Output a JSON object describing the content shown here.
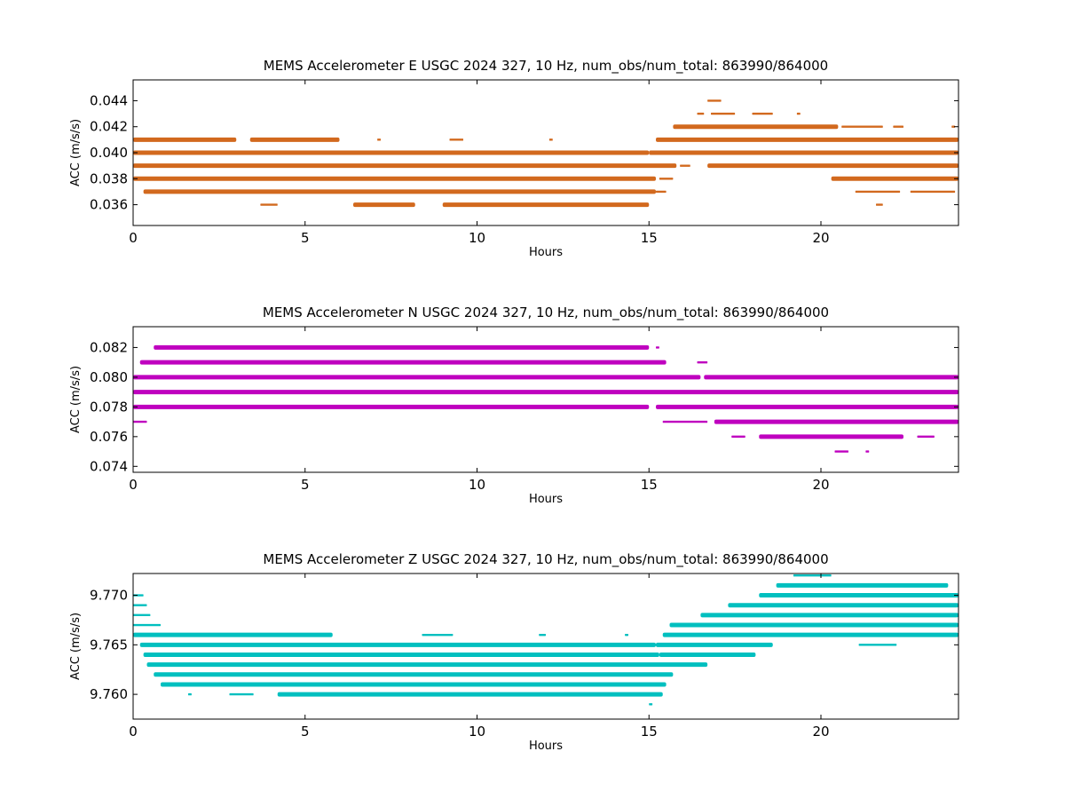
{
  "chart_data": [
    {
      "type": "scatter",
      "title": "MEMS Accelerometer E USGC 2024 327, 10 Hz, num_obs/num_total: 863990/864000",
      "xlabel": "Hours",
      "ylabel": "ACC (m/s/s)",
      "xlim": [
        0,
        24
      ],
      "ylim": [
        0.0344,
        0.0456
      ],
      "xticks": [
        "0",
        "5",
        "10",
        "15",
        "20"
      ],
      "yticks": [
        "0.036",
        "0.038",
        "0.040",
        "0.042",
        "0.044"
      ],
      "color": "#d2691e",
      "series": [
        {
          "y": 0.044,
          "segments": [
            [
              16.7,
              17.1
            ]
          ]
        },
        {
          "y": 0.043,
          "segments": [
            [
              16.4,
              16.6
            ],
            [
              16.8,
              17.5
            ],
            [
              18.0,
              18.6
            ],
            [
              19.3,
              19.4
            ]
          ]
        },
        {
          "y": 0.042,
          "segments": [
            [
              15.7,
              20.5
            ],
            [
              20.6,
              21.8
            ],
            [
              22.1,
              22.4
            ],
            [
              23.8,
              23.9
            ]
          ]
        },
        {
          "y": 0.041,
          "segments": [
            [
              0.0,
              3.0
            ],
            [
              3.4,
              6.0
            ],
            [
              7.1,
              7.2
            ],
            [
              9.2,
              9.6
            ],
            [
              12.1,
              12.2
            ],
            [
              15.2,
              24.0
            ]
          ]
        },
        {
          "y": 0.04,
          "segments": [
            [
              0.0,
              15.0
            ],
            [
              15.0,
              24.0
            ]
          ]
        },
        {
          "y": 0.039,
          "segments": [
            [
              0.0,
              15.8
            ],
            [
              15.9,
              16.2
            ],
            [
              16.7,
              24.0
            ]
          ]
        },
        {
          "y": 0.038,
          "segments": [
            [
              0.0,
              15.2
            ],
            [
              15.3,
              15.7
            ],
            [
              20.3,
              24.0
            ]
          ]
        },
        {
          "y": 0.037,
          "segments": [
            [
              0.3,
              15.2
            ],
            [
              15.2,
              15.5
            ],
            [
              21.0,
              22.3
            ],
            [
              22.6,
              23.9
            ]
          ]
        },
        {
          "y": 0.036,
          "segments": [
            [
              3.7,
              4.2
            ],
            [
              6.4,
              8.2
            ],
            [
              9.0,
              15.0
            ],
            [
              21.6,
              21.8
            ]
          ]
        }
      ]
    },
    {
      "type": "scatter",
      "title": "MEMS Accelerometer N USGC 2024 327, 10 Hz, num_obs/num_total: 863990/864000",
      "xlabel": "Hours",
      "ylabel": "ACC (m/s/s)",
      "xlim": [
        0,
        24
      ],
      "ylim": [
        0.0736,
        0.0834
      ],
      "xticks": [
        "0",
        "5",
        "10",
        "15",
        "20"
      ],
      "yticks": [
        "0.074",
        "0.076",
        "0.078",
        "0.080",
        "0.082"
      ],
      "color": "#bf00bf",
      "series": [
        {
          "y": 0.082,
          "segments": [
            [
              0.6,
              15.0
            ],
            [
              15.2,
              15.3
            ]
          ]
        },
        {
          "y": 0.081,
          "segments": [
            [
              0.2,
              15.5
            ],
            [
              16.4,
              16.7
            ]
          ]
        },
        {
          "y": 0.08,
          "segments": [
            [
              0.0,
              16.5
            ],
            [
              16.6,
              24.0
            ]
          ]
        },
        {
          "y": 0.079,
          "segments": [
            [
              0.0,
              24.0
            ]
          ]
        },
        {
          "y": 0.078,
          "segments": [
            [
              0.0,
              15.0
            ],
            [
              15.2,
              24.0
            ]
          ]
        },
        {
          "y": 0.077,
          "segments": [
            [
              0.0,
              0.4
            ],
            [
              15.4,
              16.7
            ],
            [
              16.9,
              24.0
            ]
          ]
        },
        {
          "y": 0.076,
          "segments": [
            [
              17.4,
              17.8
            ],
            [
              18.2,
              22.4
            ],
            [
              22.8,
              23.3
            ]
          ]
        },
        {
          "y": 0.075,
          "segments": [
            [
              20.4,
              20.8
            ],
            [
              21.3,
              21.4
            ]
          ]
        }
      ]
    },
    {
      "type": "scatter",
      "title": "MEMS Accelerometer Z USGC 2024 327, 10 Hz, num_obs/num_total: 863990/864000",
      "xlabel": "Hours",
      "ylabel": "ACC (m/s/s)",
      "xlim": [
        0,
        24
      ],
      "ylim": [
        9.7575,
        9.7722
      ],
      "xticks": [
        "0",
        "5",
        "10",
        "15",
        "20"
      ],
      "yticks": [
        "9.760",
        "9.765",
        "9.770"
      ],
      "color": "#00bfbf",
      "series": [
        {
          "y": 9.772,
          "segments": [
            [
              19.2,
              20.3
            ]
          ]
        },
        {
          "y": 9.771,
          "segments": [
            [
              18.7,
              23.7
            ]
          ]
        },
        {
          "y": 9.77,
          "segments": [
            [
              0.0,
              0.3
            ],
            [
              18.2,
              24.0
            ]
          ]
        },
        {
          "y": 9.769,
          "segments": [
            [
              0.0,
              0.4
            ],
            [
              17.3,
              24.0
            ]
          ]
        },
        {
          "y": 9.768,
          "segments": [
            [
              0.0,
              0.5
            ],
            [
              16.5,
              24.0
            ]
          ]
        },
        {
          "y": 9.767,
          "segments": [
            [
              0.0,
              0.8
            ],
            [
              15.6,
              24.0
            ]
          ]
        },
        {
          "y": 9.766,
          "segments": [
            [
              0.0,
              5.8
            ],
            [
              8.4,
              9.3
            ],
            [
              11.8,
              12.0
            ],
            [
              14.3,
              14.4
            ],
            [
              15.4,
              24.0
            ]
          ]
        },
        {
          "y": 9.765,
          "segments": [
            [
              0.2,
              15.2
            ],
            [
              15.2,
              18.6
            ],
            [
              21.1,
              22.2
            ]
          ]
        },
        {
          "y": 9.764,
          "segments": [
            [
              0.3,
              15.3
            ],
            [
              15.3,
              18.1
            ]
          ]
        },
        {
          "y": 9.763,
          "segments": [
            [
              0.4,
              16.7
            ]
          ]
        },
        {
          "y": 9.762,
          "segments": [
            [
              0.6,
              15.7
            ]
          ]
        },
        {
          "y": 9.761,
          "segments": [
            [
              0.8,
              15.5
            ]
          ]
        },
        {
          "y": 9.76,
          "segments": [
            [
              1.6,
              1.7
            ],
            [
              2.8,
              3.5
            ],
            [
              4.2,
              15.4
            ]
          ]
        },
        {
          "y": 9.759,
          "segments": [
            [
              15.0,
              15.1
            ]
          ]
        }
      ]
    }
  ]
}
